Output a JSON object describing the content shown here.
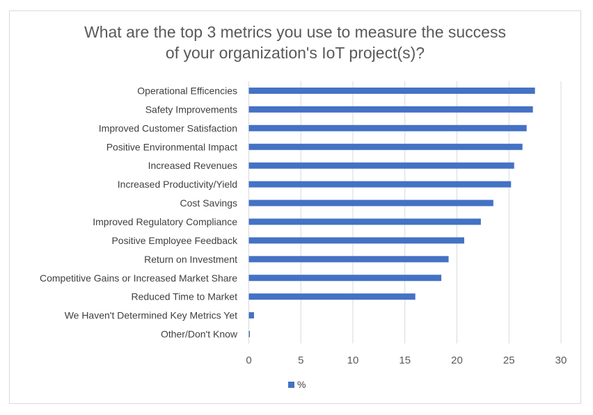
{
  "chart_data": {
    "type": "bar",
    "orientation": "horizontal",
    "title_lines": [
      "What are the top 3 metrics you use to measure the success",
      "of your organization's IoT project(s)?"
    ],
    "categories": [
      "Operational Efficencies",
      "Safety Improvements",
      "Improved Customer Satisfaction",
      "Positive Environmental Impact",
      "Increased Revenues",
      "Increased Productivity/Yield",
      "Cost Savings",
      "Improved Regulatory Compliance",
      "Positive Employee Feedback",
      "Return on Investment",
      "Competitive Gains or Increased Market Share",
      "Reduced Time to Market",
      "We Haven't Determined Key Metrics Yet",
      "Other/Don't Know"
    ],
    "series": [
      {
        "name": "%",
        "values": [
          27.5,
          27.3,
          26.7,
          26.3,
          25.5,
          25.2,
          23.5,
          22.3,
          20.7,
          19.2,
          18.5,
          16.0,
          0.5,
          0.1
        ]
      }
    ],
    "xlim": [
      0,
      30
    ],
    "xticks": [
      0,
      5,
      10,
      15,
      20,
      25,
      30
    ],
    "grid": true,
    "legend": "bottom",
    "color": "#4472c4"
  }
}
